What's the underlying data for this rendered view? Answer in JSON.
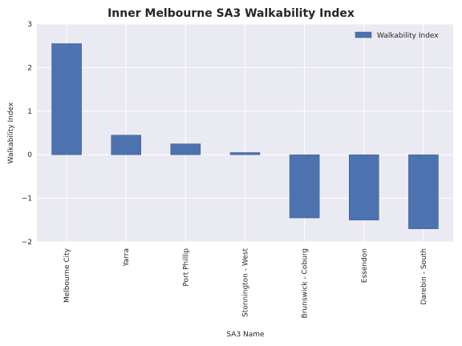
{
  "chart_data": {
    "type": "bar",
    "title": "Inner Melbourne SA3 Walkability Index",
    "xlabel": "SA3 Name",
    "ylabel": "Walkability Index",
    "categories": [
      "Melbourne City",
      "Yarra",
      "Port Phillip",
      "Stonnington - West",
      "Brunswick - Coburg",
      "Essendon",
      "Darebin - South"
    ],
    "series": [
      {
        "name": "Walkability Index",
        "values": [
          2.55,
          0.45,
          0.25,
          0.05,
          -1.45,
          -1.5,
          -1.7
        ]
      }
    ],
    "ylim": [
      -2,
      3
    ],
    "yticks": [
      "−2",
      "−1",
      "0",
      "1",
      "2",
      "3"
    ],
    "ytick_values": [
      -2,
      -1,
      0,
      1,
      2,
      3
    ],
    "grid": true,
    "legend_position": "top-right",
    "colors": {
      "bar": "#4c72b0",
      "plot_background": "#eaeaf2",
      "grid": "#ffffff"
    }
  }
}
